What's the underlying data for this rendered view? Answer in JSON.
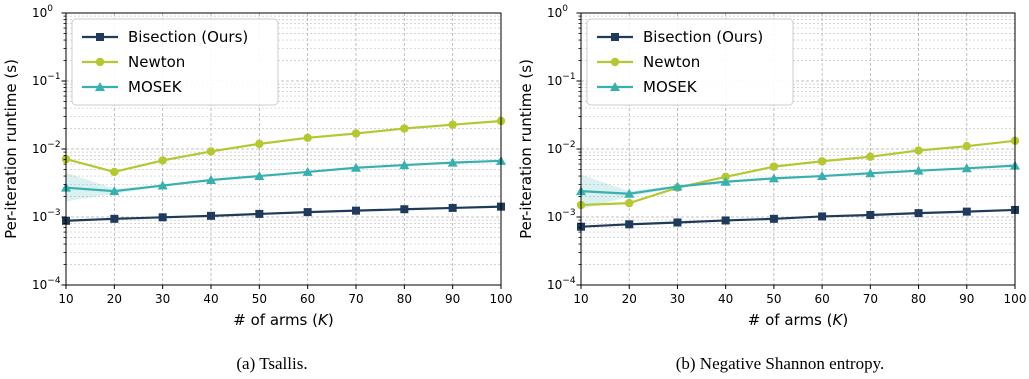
{
  "chart_data": [
    {
      "type": "line",
      "caption": "(a) Tsallis.",
      "xlabel": "# of arms (K)",
      "ylabel": "Per-iteration runtime (s)",
      "yscale": "log",
      "xlim": [
        10,
        100
      ],
      "ylim": [
        0.0001,
        1
      ],
      "grid": true,
      "legend_position": "top-left",
      "x": [
        10,
        20,
        30,
        40,
        50,
        60,
        70,
        80,
        90,
        100
      ],
      "x_tick_labels": [
        "10",
        "20",
        "30",
        "40",
        "50",
        "60",
        "70",
        "80",
        "90",
        "100"
      ],
      "y_tick_labels": [
        {
          "base": "10",
          "exp": "−4"
        },
        {
          "base": "10",
          "exp": "−3"
        },
        {
          "base": "10",
          "exp": "−2"
        },
        {
          "base": "10",
          "exp": "−1"
        },
        {
          "base": "10",
          "exp": "0"
        }
      ],
      "series": [
        {
          "name": "Bisection (Ours)",
          "color": "#1f3a5a",
          "marker": "square",
          "values": [
            0.00088,
            0.00094,
            0.00099,
            0.00104,
            0.00111,
            0.00118,
            0.00124,
            0.0013,
            0.00136,
            0.00142
          ]
        },
        {
          "name": "Newton",
          "color": "#b5c732",
          "marker": "circle",
          "values": [
            0.0071,
            0.0046,
            0.0068,
            0.0092,
            0.0119,
            0.0146,
            0.0169,
            0.02,
            0.0228,
            0.0258
          ]
        },
        {
          "name": "MOSEK",
          "color": "#38b0b0",
          "marker": "triangle",
          "values": [
            0.0027,
            0.0024,
            0.0029,
            0.0035,
            0.004,
            0.0046,
            0.0053,
            0.0058,
            0.0063,
            0.0067
          ],
          "band_lower": [
            0.0017,
            0.0022,
            0.0028,
            0.0034,
            0.0039,
            0.0045,
            0.0052,
            0.0057,
            0.0062,
            0.0066
          ],
          "band_upper": [
            0.0045,
            0.0026,
            0.003,
            0.0036,
            0.0041,
            0.0047,
            0.0054,
            0.0059,
            0.0064,
            0.0068
          ]
        }
      ]
    },
    {
      "type": "line",
      "caption": "(b) Negative Shannon entropy.",
      "xlabel": "# of arms (K)",
      "ylabel": "Per-iteration runtime (s)",
      "yscale": "log",
      "xlim": [
        10,
        100
      ],
      "ylim": [
        0.0001,
        1
      ],
      "grid": true,
      "legend_position": "top-left",
      "x": [
        10,
        20,
        30,
        40,
        50,
        60,
        70,
        80,
        90,
        100
      ],
      "x_tick_labels": [
        "10",
        "20",
        "30",
        "40",
        "50",
        "60",
        "70",
        "80",
        "90",
        "100"
      ],
      "y_tick_labels": [
        {
          "base": "10",
          "exp": "−4"
        },
        {
          "base": "10",
          "exp": "−3"
        },
        {
          "base": "10",
          "exp": "−2"
        },
        {
          "base": "10",
          "exp": "−1"
        },
        {
          "base": "10",
          "exp": "0"
        }
      ],
      "series": [
        {
          "name": "Bisection (Ours)",
          "color": "#1f3a5a",
          "marker": "square",
          "values": [
            0.00072,
            0.00078,
            0.00083,
            0.00089,
            0.00094,
            0.00102,
            0.00107,
            0.00114,
            0.0012,
            0.00127
          ]
        },
        {
          "name": "Newton",
          "color": "#b5c732",
          "marker": "circle",
          "values": [
            0.0015,
            0.0016,
            0.0027,
            0.0039,
            0.0055,
            0.0066,
            0.0077,
            0.0095,
            0.011,
            0.0132
          ]
        },
        {
          "name": "MOSEK",
          "color": "#38b0b0",
          "marker": "triangle",
          "values": [
            0.0024,
            0.0022,
            0.0028,
            0.0033,
            0.0037,
            0.004,
            0.0044,
            0.0048,
            0.0052,
            0.0057
          ],
          "band_lower": [
            0.0013,
            0.002,
            0.0027,
            0.0032,
            0.0036,
            0.0039,
            0.0043,
            0.0047,
            0.0051,
            0.0056
          ],
          "band_upper": [
            0.0042,
            0.0024,
            0.0029,
            0.0034,
            0.0038,
            0.0041,
            0.0045,
            0.0049,
            0.0053,
            0.0058
          ]
        }
      ]
    }
  ]
}
